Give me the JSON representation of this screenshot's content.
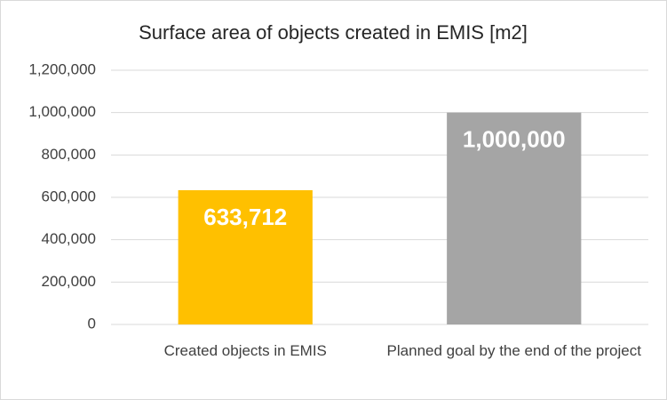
{
  "chart_data": {
    "type": "bar",
    "title": "Surface area of objects created in EMIS [m2]",
    "categories": [
      "Created objects in EMIS",
      "Planned goal by the end of the project"
    ],
    "values": [
      633712,
      1000000
    ],
    "value_labels": [
      "633,712",
      "1,000,000"
    ],
    "colors": [
      "#ffc000",
      "#a5a5a5"
    ],
    "ylim": [
      0,
      1200000
    ],
    "yticks": [
      0,
      {
        "value": 200000,
        "label": "200,000"
      },
      {
        "value": 400000,
        "label": "400,000"
      },
      {
        "value": 600000,
        "label": "600,000"
      },
      {
        "value": 800000,
        "label": "800,000"
      },
      {
        "value": 1000000,
        "label": "1,000,000"
      },
      {
        "value": 1200000,
        "label": "1,200,000"
      }
    ],
    "grid": true
  }
}
